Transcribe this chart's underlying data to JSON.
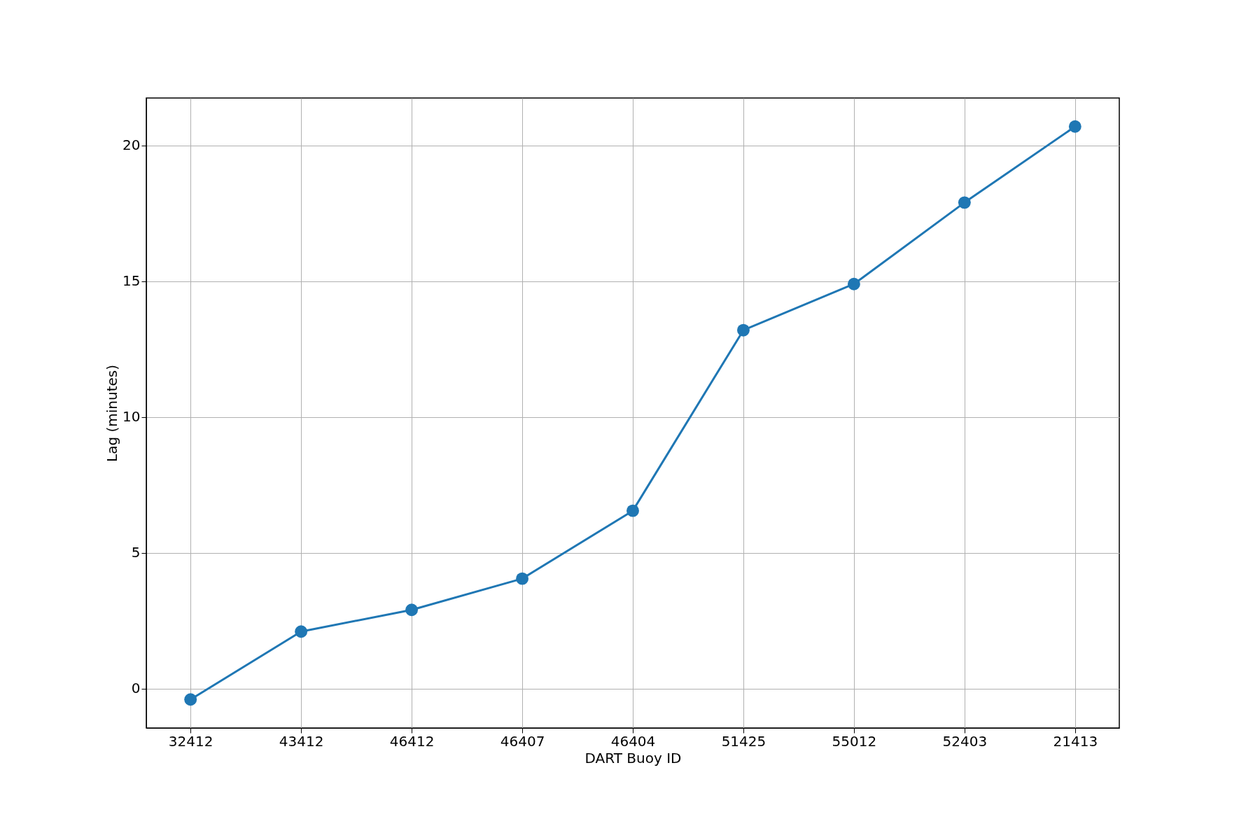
{
  "chart_data": {
    "type": "line",
    "xlabel": "DART Buoy ID",
    "ylabel": "Lag (minutes)",
    "categories": [
      "32412",
      "43412",
      "46412",
      "46407",
      "46404",
      "51425",
      "55012",
      "52403",
      "21413"
    ],
    "series": [
      {
        "color": "#1f77b4",
        "values": [
          -0.4,
          2.1,
          2.9,
          4.05,
          6.55,
          13.2,
          14.9,
          17.9,
          20.7
        ]
      }
    ],
    "ylim": [
      -1.45,
      21.75
    ],
    "yticks": [
      0,
      5,
      10,
      15,
      20
    ],
    "grid": true,
    "marker": "circle",
    "line_style": "solid"
  }
}
